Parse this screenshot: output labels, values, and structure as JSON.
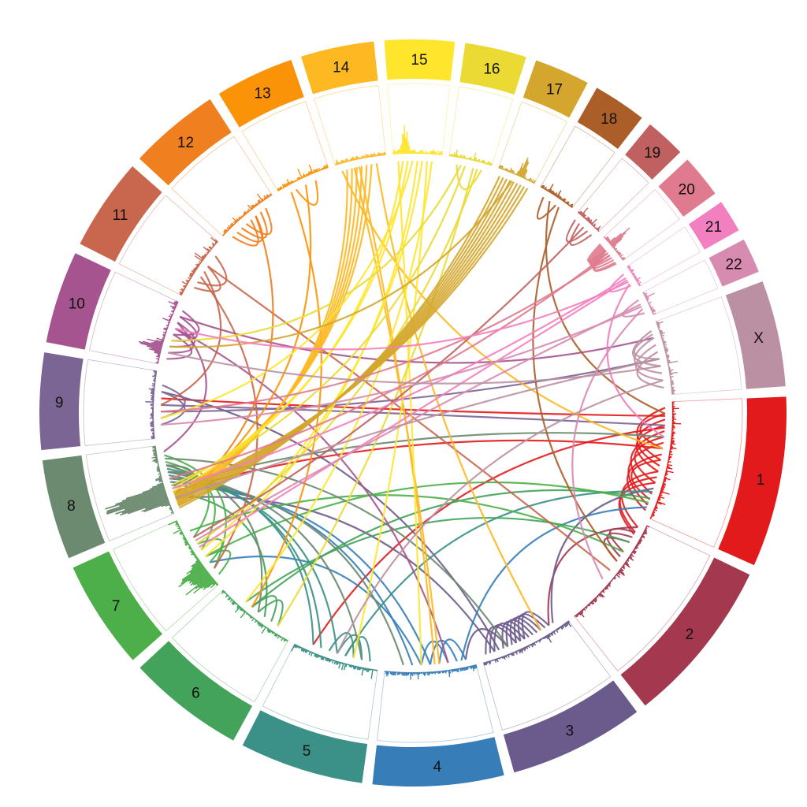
{
  "chromosomes": [
    {
      "label": "1",
      "color": "#e31a1c",
      "length": 249
    },
    {
      "label": "2",
      "color": "#a3384e",
      "length": 243
    },
    {
      "label": "3",
      "color": "#6b5b8c",
      "length": 198
    },
    {
      "label": "4",
      "color": "#377eb8",
      "length": 191
    },
    {
      "label": "5",
      "color": "#3b9087",
      "length": 181
    },
    {
      "label": "6",
      "color": "#44a35b",
      "length": 171
    },
    {
      "label": "7",
      "color": "#4daf4a",
      "length": 159
    },
    {
      "label": "8",
      "color": "#6b8a6f",
      "length": 146
    },
    {
      "label": "9",
      "color": "#7b6595",
      "length": 141
    },
    {
      "label": "10",
      "color": "#a6548f",
      "length": 135
    },
    {
      "label": "11",
      "color": "#c8664e",
      "length": 135
    },
    {
      "label": "12",
      "color": "#f07f1f",
      "length": 133
    },
    {
      "label": "13",
      "color": "#fb9309",
      "length": 115
    },
    {
      "label": "14",
      "color": "#fdb822",
      "length": 107
    },
    {
      "label": "15",
      "color": "#ffe52c",
      "length": 102
    },
    {
      "label": "16",
      "color": "#eada33",
      "length": 90
    },
    {
      "label": "17",
      "color": "#d4a62d",
      "length": 81
    },
    {
      "label": "18",
      "color": "#ac5e29",
      "length": 78
    },
    {
      "label": "19",
      "color": "#c06060",
      "length": 59
    },
    {
      "label": "20",
      "color": "#e07a8e",
      "length": 63
    },
    {
      "label": "21",
      "color": "#f27fbf",
      "length": 48
    },
    {
      "label": "22",
      "color": "#d88bb0",
      "length": 51
    },
    {
      "label": "X",
      "color": "#bc90a3",
      "length": 155
    }
  ],
  "links": [
    [
      0,
      0.1,
      0,
      0.4
    ],
    [
      0,
      0.15,
      0,
      0.55
    ],
    [
      0,
      0.2,
      0,
      0.6
    ],
    [
      0,
      0.3,
      0,
      0.7
    ],
    [
      0,
      0.25,
      0,
      0.8
    ],
    [
      0,
      0.35,
      0,
      0.9
    ],
    [
      0,
      0.05,
      0,
      0.5
    ],
    [
      0,
      0.45,
      0,
      0.95
    ],
    [
      0,
      0.5,
      0,
      0.85
    ],
    [
      0,
      0.6,
      1,
      0.05
    ],
    [
      0,
      0.65,
      1,
      0.1
    ],
    [
      0,
      0.7,
      1,
      0.12
    ],
    [
      0,
      0.4,
      7,
      0.3
    ],
    [
      0,
      0.12,
      8,
      0.6
    ],
    [
      0,
      0.22,
      4,
      0.8
    ],
    [
      1,
      0.1,
      1,
      0.3
    ],
    [
      1,
      0.15,
      1,
      0.35
    ],
    [
      1,
      0.2,
      1,
      0.4
    ],
    [
      1,
      0.05,
      2,
      0.2
    ],
    [
      2,
      0.2,
      2,
      0.5
    ],
    [
      2,
      0.25,
      2,
      0.55
    ],
    [
      2,
      0.3,
      2,
      0.6
    ],
    [
      2,
      0.35,
      2,
      0.65
    ],
    [
      2,
      0.4,
      2,
      0.7
    ],
    [
      2,
      0.45,
      2,
      0.75
    ],
    [
      2,
      0.5,
      2,
      0.85
    ],
    [
      2,
      0.55,
      2,
      0.9
    ],
    [
      2,
      0.6,
      2,
      0.95
    ],
    [
      2,
      0.7,
      3,
      0.1
    ],
    [
      2,
      0.8,
      8,
      0.7
    ],
    [
      2,
      0.85,
      7,
      0.2
    ],
    [
      2,
      0.15,
      0,
      0.75
    ],
    [
      3,
      0.1,
      3,
      0.4
    ],
    [
      3,
      0.2,
      3,
      0.5
    ],
    [
      3,
      0.3,
      3,
      0.6
    ],
    [
      3,
      0.15,
      0,
      0.92
    ],
    [
      3,
      0.5,
      7,
      0.4
    ],
    [
      3,
      0.7,
      7,
      0.45
    ],
    [
      3,
      0.6,
      6,
      0.3
    ],
    [
      4,
      0.1,
      4,
      0.4
    ],
    [
      4,
      0.2,
      4,
      0.5
    ],
    [
      4,
      0.3,
      4,
      0.6
    ],
    [
      4,
      0.5,
      7,
      0.55
    ],
    [
      4,
      0.7,
      7,
      0.6
    ],
    [
      4,
      0.8,
      7,
      0.65
    ],
    [
      4,
      0.4,
      0,
      0.78
    ],
    [
      5,
      0.2,
      5,
      0.5
    ],
    [
      5,
      0.3,
      5,
      0.6
    ],
    [
      5,
      0.4,
      7,
      0.3
    ],
    [
      5,
      0.6,
      0,
      0.84
    ],
    [
      5,
      0.7,
      1,
      0.2
    ],
    [
      6,
      0.1,
      6,
      0.4
    ],
    [
      6,
      0.3,
      6,
      0.6
    ],
    [
      6,
      0.5,
      7,
      0.7
    ],
    [
      6,
      0.7,
      7,
      0.75
    ],
    [
      6,
      0.8,
      1,
      0.3
    ],
    [
      6,
      0.4,
      0,
      0.88
    ],
    [
      6,
      0.2,
      7,
      0.85
    ],
    [
      7,
      0.2,
      7,
      0.6
    ],
    [
      7,
      0.3,
      7,
      0.7
    ],
    [
      7,
      0.1,
      7,
      0.5
    ],
    [
      7,
      0.4,
      0,
      0.3
    ],
    [
      7,
      0.5,
      3,
      0.8
    ],
    [
      7,
      0.8,
      2,
      0.7
    ],
    [
      7,
      0.6,
      4,
      0.2
    ],
    [
      7,
      0.7,
      5,
      0.5
    ],
    [
      8,
      0.2,
      8,
      0.7
    ],
    [
      8,
      0.3,
      8,
      0.8
    ],
    [
      8,
      0.5,
      0,
      0.2
    ],
    [
      8,
      0.4,
      22,
      0.5
    ],
    [
      9,
      0.2,
      9,
      0.6
    ],
    [
      9,
      0.3,
      9,
      0.7
    ],
    [
      9,
      0.1,
      9,
      0.5
    ],
    [
      9,
      0.4,
      9,
      0.8
    ],
    [
      9,
      0.5,
      9,
      0.9
    ],
    [
      9,
      0.6,
      3,
      0.3
    ],
    [
      9,
      0.7,
      7,
      0.9
    ],
    [
      9,
      0.8,
      22,
      0.2
    ],
    [
      10,
      0.2,
      10,
      0.6
    ],
    [
      10,
      0.3,
      10,
      0.8
    ],
    [
      10,
      0.5,
      8,
      0.5
    ],
    [
      10,
      0.4,
      6,
      0.2
    ],
    [
      10,
      0.6,
      1,
      0.5
    ],
    [
      11,
      0.1,
      11,
      0.5
    ],
    [
      11,
      0.2,
      11,
      0.6
    ],
    [
      11,
      0.3,
      11,
      0.7
    ],
    [
      11,
      0.4,
      11,
      0.8
    ],
    [
      11,
      0.6,
      7,
      0.1
    ],
    [
      12,
      0.3,
      12,
      0.7
    ],
    [
      12,
      0.5,
      7,
      0.15
    ],
    [
      12,
      0.2,
      5,
      0.6
    ],
    [
      13,
      0.2,
      7,
      0.1
    ],
    [
      13,
      0.3,
      7,
      0.12
    ],
    [
      13,
      0.4,
      7,
      0.15
    ],
    [
      13,
      0.5,
      7,
      0.18
    ],
    [
      13,
      0.6,
      7,
      0.22
    ],
    [
      13,
      0.7,
      7,
      0.25
    ],
    [
      13,
      0.35,
      3,
      0.4
    ],
    [
      13,
      0.45,
      3,
      0.45
    ],
    [
      13,
      0.8,
      2,
      0.3
    ],
    [
      13,
      0.1,
      0,
      0.4
    ],
    [
      14,
      0.2,
      7,
      0.3
    ],
    [
      14,
      0.3,
      7,
      0.35
    ],
    [
      14,
      0.5,
      6,
      0.4
    ],
    [
      14,
      0.6,
      6,
      0.5
    ],
    [
      14,
      0.7,
      4,
      0.3
    ],
    [
      14,
      0.4,
      8,
      0.3
    ],
    [
      14,
      0.8,
      5,
      0.7
    ],
    [
      14,
      0.1,
      3,
      0.6
    ],
    [
      15,
      0.2,
      15,
      0.8
    ],
    [
      15,
      0.4,
      7,
      0.4
    ],
    [
      15,
      0.3,
      9,
      0.4
    ],
    [
      15,
      0.6,
      5,
      0.2
    ],
    [
      15,
      0.7,
      6,
      0.6
    ],
    [
      16,
      0.1,
      7,
      0.05
    ],
    [
      16,
      0.2,
      7,
      0.08
    ],
    [
      16,
      0.3,
      7,
      0.1
    ],
    [
      16,
      0.4,
      7,
      0.13
    ],
    [
      16,
      0.5,
      7,
      0.16
    ],
    [
      16,
      0.6,
      7,
      0.19
    ],
    [
      16,
      0.7,
      7,
      0.22
    ],
    [
      16,
      0.8,
      7,
      0.25
    ],
    [
      16,
      0.9,
      7,
      0.28
    ],
    [
      16,
      0.45,
      9,
      0.3
    ],
    [
      17,
      0.2,
      17,
      0.6
    ],
    [
      17,
      0.4,
      0,
      0.1
    ],
    [
      17,
      0.7,
      1,
      0.4
    ],
    [
      18,
      0.1,
      18,
      0.7
    ],
    [
      18,
      0.3,
      18,
      0.9
    ],
    [
      18,
      0.5,
      6,
      0.7
    ],
    [
      19,
      0.1,
      19,
      0.4
    ],
    [
      19,
      0.15,
      19,
      0.5
    ],
    [
      19,
      0.2,
      19,
      0.6
    ],
    [
      19,
      0.25,
      19,
      0.7
    ],
    [
      19,
      0.3,
      19,
      0.8
    ],
    [
      19,
      0.35,
      19,
      0.9
    ],
    [
      19,
      0.4,
      19,
      0.95
    ],
    [
      19,
      0.5,
      7,
      0.5
    ],
    [
      19,
      0.6,
      8,
      0.4
    ],
    [
      20,
      0.2,
      20,
      0.8
    ],
    [
      20,
      0.4,
      7,
      0.35
    ],
    [
      20,
      0.5,
      6,
      0.55
    ],
    [
      20,
      0.6,
      9,
      0.6
    ],
    [
      20,
      0.7,
      0,
      0.3
    ],
    [
      21,
      0.2,
      21,
      0.8
    ],
    [
      21,
      0.4,
      6,
      0.65
    ],
    [
      21,
      0.5,
      8,
      0.2
    ],
    [
      21,
      0.6,
      1,
      0.6
    ],
    [
      22,
      0.1,
      22,
      0.6
    ],
    [
      22,
      0.2,
      22,
      0.7
    ],
    [
      22,
      0.3,
      22,
      0.8
    ],
    [
      22,
      0.4,
      22,
      0.9
    ],
    [
      22,
      0.15,
      22,
      0.5
    ],
    [
      22,
      0.5,
      7,
      0.2
    ],
    [
      22,
      0.6,
      9,
      0.2
    ],
    [
      22,
      0.8,
      4,
      0.5
    ]
  ],
  "histogram": {
    "seed": 7,
    "peaks": [
      {
        "chr": 7,
        "pos": 0.35,
        "height": 1.0
      },
      {
        "chr": 7,
        "pos": 0.25,
        "height": 0.8
      },
      {
        "chr": 6,
        "pos": 0.3,
        "height": 0.55
      },
      {
        "chr": 6,
        "pos": 0.15,
        "height": 0.45
      },
      {
        "chr": 9,
        "pos": 0.25,
        "height": 0.35
      },
      {
        "chr": 19,
        "pos": 0.35,
        "height": 0.5
      },
      {
        "chr": 14,
        "pos": 0.25,
        "height": 0.45
      },
      {
        "chr": 16,
        "pos": 0.6,
        "height": 0.4
      }
    ]
  }
}
